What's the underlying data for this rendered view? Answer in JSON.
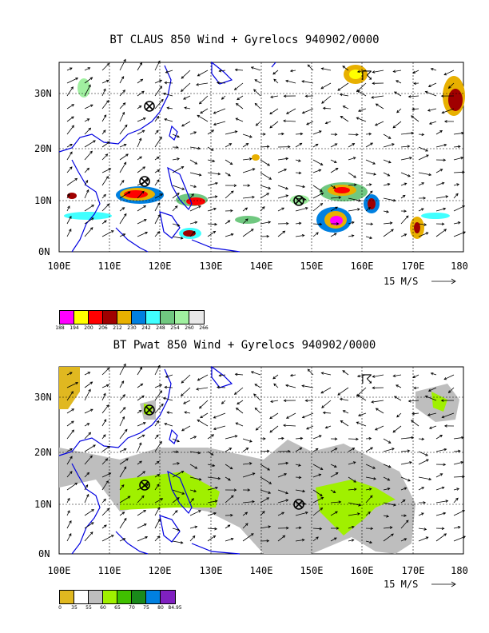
{
  "panel_top": {
    "title": "BT CLAUS 850 Wind + Gyrelocs 940902/0000",
    "lon_labels": [
      "100E",
      "110E",
      "120E",
      "130E",
      "140E",
      "150E",
      "160E",
      "170E",
      "180"
    ],
    "lat_labels": [
      "0N",
      "10N",
      "20N",
      "30N"
    ],
    "ref_vector": "15 M/S",
    "legend": {
      "labels": [
        "188",
        "194",
        "200",
        "206",
        "212",
        "230",
        "242",
        "248",
        "254",
        "260",
        "266"
      ],
      "colors": [
        "#ff00ff",
        "#ffff00",
        "#ff0000",
        "#a00000",
        "#e8b000",
        "#0080e0",
        "#40ffff",
        "#70c880",
        "#a0f0a0",
        "#e8e8e8"
      ]
    }
  },
  "panel_bottom": {
    "title": "BT Pwat 850 Wind + Gyrelocs 940902/0000",
    "lon_labels": [
      "100E",
      "110E",
      "120E",
      "130E",
      "140E",
      "150E",
      "160E",
      "170E",
      "180"
    ],
    "lat_labels": [
      "0N",
      "10N",
      "20N",
      "30N"
    ],
    "ref_vector": "15 M/S",
    "legend": {
      "labels": [
        "0",
        "35",
        "55",
        "60",
        "65",
        "70",
        "75",
        "80",
        "84.95"
      ],
      "colors": [
        "#e0b820",
        "#ffffff",
        "#bebebe",
        "#a0f000",
        "#40c000",
        "#1a8a1a",
        "#0080e0",
        "#8020c0"
      ]
    }
  }
}
